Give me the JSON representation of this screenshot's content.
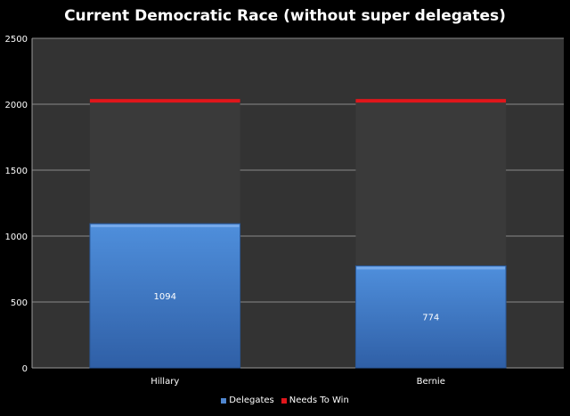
{
  "chart_data": {
    "type": "bar",
    "title": "Current Democratic Race (without super delegates)",
    "categories": [
      "Hillary",
      "Bernie"
    ],
    "series": [
      {
        "name": "Delegates",
        "values": [
          1094,
          774
        ],
        "color": "#4f86cf"
      },
      {
        "name": "Needs To Win",
        "values": [
          2026,
          2026
        ],
        "color": "#e0161b"
      }
    ],
    "ylim": [
      0,
      2500
    ],
    "yticks": [
      0,
      500,
      1000,
      1500,
      2000,
      2500
    ],
    "grid": true,
    "legend": "bottom",
    "colors": {
      "background": "#000000",
      "plot_area": "#333333",
      "gridline": "#8a8a8a"
    }
  }
}
